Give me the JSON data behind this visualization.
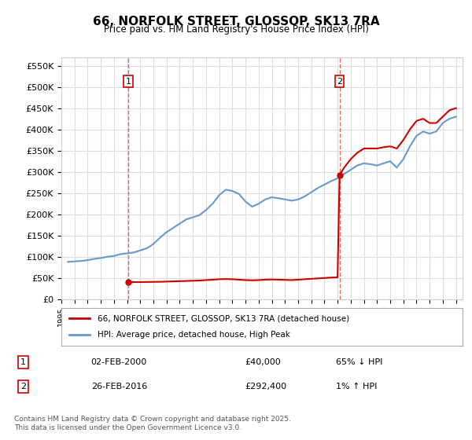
{
  "title": "66, NORFOLK STREET, GLOSSOP, SK13 7RA",
  "subtitle": "Price paid vs. HM Land Registry's House Price Index (HPI)",
  "ylabel_ticks": [
    "£0",
    "£50K",
    "£100K",
    "£150K",
    "£200K",
    "£250K",
    "£300K",
    "£350K",
    "£400K",
    "£450K",
    "£500K",
    "£550K"
  ],
  "ytick_values": [
    0,
    50000,
    100000,
    150000,
    200000,
    250000,
    300000,
    350000,
    400000,
    450000,
    500000,
    550000
  ],
  "ylim": [
    0,
    570000
  ],
  "xlim_start": 1995.0,
  "xlim_end": 2025.5,
  "background_color": "#ffffff",
  "grid_color": "#dddddd",
  "line1_color": "#cc0000",
  "line2_color": "#6699cc",
  "marker1_x": 2000.09,
  "marker1_y": 40000,
  "marker2_x": 2016.15,
  "marker2_y": 292400,
  "vline1_x": 2000.09,
  "vline2_x": 2016.15,
  "legend_line1": "66, NORFOLK STREET, GLOSSOP, SK13 7RA (detached house)",
  "legend_line2": "HPI: Average price, detached house, High Peak",
  "annotation1_label": "1",
  "annotation2_label": "2",
  "table_row1": [
    "1",
    "02-FEB-2000",
    "£40,000",
    "65% ↓ HPI"
  ],
  "table_row2": [
    "2",
    "26-FEB-2016",
    "£292,400",
    "1% ↑ HPI"
  ],
  "footnote": "Contains HM Land Registry data © Crown copyright and database right 2025.\nThis data is licensed under the Open Government Licence v3.0.",
  "hpi_years": [
    1995.5,
    1996.0,
    1996.5,
    1997.0,
    1997.5,
    1998.0,
    1998.5,
    1999.0,
    1999.5,
    2000.0,
    2000.5,
    2001.0,
    2001.5,
    2002.0,
    2002.5,
    2003.0,
    2003.5,
    2004.0,
    2004.5,
    2005.0,
    2005.5,
    2006.0,
    2006.5,
    2007.0,
    2007.5,
    2008.0,
    2008.5,
    2009.0,
    2009.5,
    2010.0,
    2010.5,
    2011.0,
    2011.5,
    2012.0,
    2012.5,
    2013.0,
    2013.5,
    2014.0,
    2014.5,
    2015.0,
    2015.5,
    2016.0,
    2016.5,
    2017.0,
    2017.5,
    2018.0,
    2018.5,
    2019.0,
    2019.5,
    2020.0,
    2020.5,
    2021.0,
    2021.5,
    2022.0,
    2022.5,
    2023.0,
    2023.5,
    2024.0,
    2024.5,
    2025.0
  ],
  "hpi_values": [
    88000,
    89000,
    90000,
    92000,
    95000,
    97000,
    100000,
    102000,
    106000,
    108000,
    110000,
    115000,
    120000,
    130000,
    145000,
    158000,
    168000,
    178000,
    188000,
    193000,
    198000,
    210000,
    225000,
    245000,
    258000,
    255000,
    248000,
    230000,
    218000,
    225000,
    235000,
    240000,
    238000,
    235000,
    232000,
    235000,
    242000,
    252000,
    262000,
    270000,
    278000,
    285000,
    295000,
    305000,
    315000,
    320000,
    318000,
    315000,
    320000,
    325000,
    310000,
    330000,
    360000,
    385000,
    395000,
    390000,
    395000,
    415000,
    425000,
    430000
  ],
  "prop_years": [
    1995.5,
    1999.0,
    2000.09,
    2000.5,
    2001.0,
    2001.5,
    2002.0,
    2002.5,
    2003.0,
    2003.5,
    2004.0,
    2004.5,
    2005.0,
    2005.5,
    2006.0,
    2006.5,
    2007.0,
    2007.5,
    2008.0,
    2008.5,
    2009.0,
    2009.5,
    2010.0,
    2010.5,
    2011.0,
    2011.5,
    2012.0,
    2012.5,
    2013.0,
    2013.5,
    2014.0,
    2014.5,
    2015.0,
    2015.5,
    2016.0,
    2016.15,
    2016.5,
    2017.0,
    2017.5,
    2018.0,
    2018.5,
    2019.0,
    2019.5,
    2020.0,
    2020.5,
    2021.0,
    2021.5,
    2022.0,
    2022.5,
    2023.0,
    2023.5,
    2024.0,
    2024.5,
    2025.0
  ],
  "prop_values": [
    null,
    null,
    40000,
    40200,
    40400,
    40600,
    40800,
    41000,
    41500,
    42000,
    42500,
    43000,
    43500,
    44000,
    45000,
    46000,
    47000,
    47500,
    47000,
    46000,
    45000,
    44500,
    45000,
    46000,
    46500,
    46000,
    45500,
    45000,
    46000,
    47000,
    48000,
    49000,
    50000,
    51000,
    51500,
    292400,
    310000,
    330000,
    345000,
    355000,
    355000,
    355000,
    358000,
    360000,
    355000,
    375000,
    400000,
    420000,
    425000,
    415000,
    415000,
    430000,
    445000,
    450000
  ]
}
